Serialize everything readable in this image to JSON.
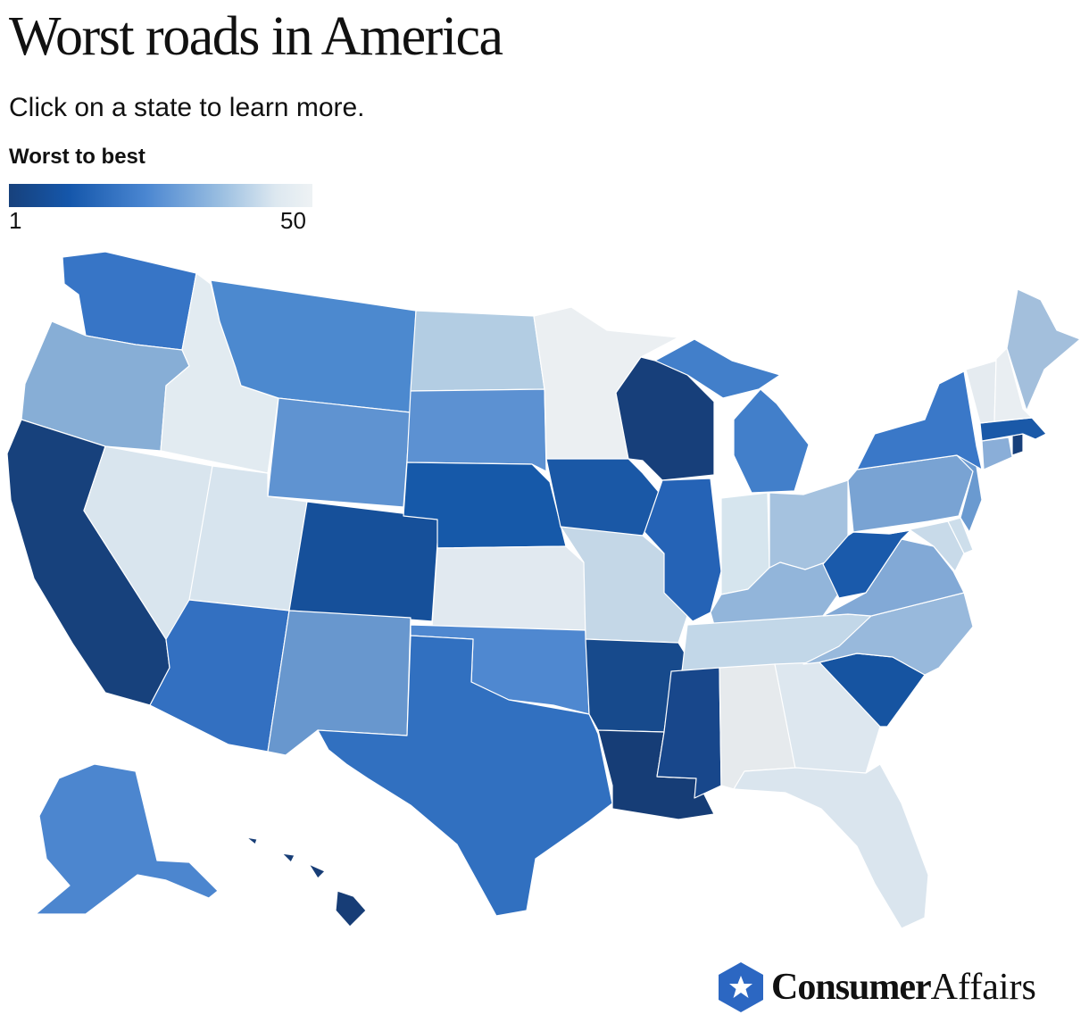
{
  "header": {
    "title": "Worst roads in America",
    "subtitle": "Click on a state to learn more."
  },
  "legend": {
    "title": "Worst to best",
    "min_label": "1",
    "max_label": "50",
    "colors": [
      "#17417c",
      "#1557ab",
      "#4a86d1",
      "#9bbfe1",
      "#dde8f0",
      "#eef2f4"
    ]
  },
  "map": {
    "metric": "rank",
    "states": [
      {
        "id": "WA",
        "name": "Washington",
        "fill": "#3775c6"
      },
      {
        "id": "OR",
        "name": "Oregon",
        "fill": "#87aed6"
      },
      {
        "id": "CA",
        "name": "California",
        "fill": "#17417c"
      },
      {
        "id": "ID",
        "name": "Idaho",
        "fill": "#e2ebf1"
      },
      {
        "id": "NV",
        "name": "Nevada",
        "fill": "#d9e5ee"
      },
      {
        "id": "MT",
        "name": "Montana",
        "fill": "#4c89cf"
      },
      {
        "id": "WY",
        "name": "Wyoming",
        "fill": "#5f93d1"
      },
      {
        "id": "UT",
        "name": "Utah",
        "fill": "#d7e4ee"
      },
      {
        "id": "CO",
        "name": "Colorado",
        "fill": "#16509a"
      },
      {
        "id": "AZ",
        "name": "Arizona",
        "fill": "#3370c1"
      },
      {
        "id": "NM",
        "name": "New Mexico",
        "fill": "#6897ce"
      },
      {
        "id": "ND",
        "name": "North Dakota",
        "fill": "#b3cde3"
      },
      {
        "id": "SD",
        "name": "South Dakota",
        "fill": "#5c91d2"
      },
      {
        "id": "NE",
        "name": "Nebraska",
        "fill": "#1659a9"
      },
      {
        "id": "KS",
        "name": "Kansas",
        "fill": "#e1e9f0"
      },
      {
        "id": "OK",
        "name": "Oklahoma",
        "fill": "#4f88d0"
      },
      {
        "id": "TX",
        "name": "Texas",
        "fill": "#3170c0"
      },
      {
        "id": "MN",
        "name": "Minnesota",
        "fill": "#ebeff2"
      },
      {
        "id": "IA",
        "name": "Iowa",
        "fill": "#1a58a6"
      },
      {
        "id": "MO",
        "name": "Missouri",
        "fill": "#c4d7e7"
      },
      {
        "id": "AR",
        "name": "Arkansas",
        "fill": "#174a8c"
      },
      {
        "id": "LA",
        "name": "Louisiana",
        "fill": "#163d76"
      },
      {
        "id": "WI",
        "name": "Wisconsin",
        "fill": "#173f7a"
      },
      {
        "id": "IL",
        "name": "Illinois",
        "fill": "#2563b6"
      },
      {
        "id": "MI",
        "name": "Michigan",
        "fill": "#427fca"
      },
      {
        "id": "IN",
        "name": "Indiana",
        "fill": "#d6e5ee"
      },
      {
        "id": "OH",
        "name": "Ohio",
        "fill": "#a5c2df"
      },
      {
        "id": "KY",
        "name": "Kentucky",
        "fill": "#92b5da"
      },
      {
        "id": "TN",
        "name": "Tennessee",
        "fill": "#c2d7e8"
      },
      {
        "id": "MS",
        "name": "Mississippi",
        "fill": "#18478b"
      },
      {
        "id": "AL",
        "name": "Alabama",
        "fill": "#e6eaed"
      },
      {
        "id": "GA",
        "name": "Georgia",
        "fill": "#dde7ef"
      },
      {
        "id": "FL",
        "name": "Florida",
        "fill": "#dae5ee"
      },
      {
        "id": "SC",
        "name": "South Carolina",
        "fill": "#1654a1"
      },
      {
        "id": "NC",
        "name": "North Carolina",
        "fill": "#98b9dc"
      },
      {
        "id": "VA",
        "name": "Virginia",
        "fill": "#82a9d6"
      },
      {
        "id": "WV",
        "name": "West Virginia",
        "fill": "#1a5aab"
      },
      {
        "id": "PA",
        "name": "Pennsylvania",
        "fill": "#79a3d3"
      },
      {
        "id": "NY",
        "name": "New York",
        "fill": "#3a78c8"
      },
      {
        "id": "MD",
        "name": "Maryland",
        "fill": "#c8dae9"
      },
      {
        "id": "DE",
        "name": "Delaware",
        "fill": "#cddeeb"
      },
      {
        "id": "NJ",
        "name": "New Jersey",
        "fill": "#6a9ad0"
      },
      {
        "id": "CT",
        "name": "Connecticut",
        "fill": "#8aaed8"
      },
      {
        "id": "RI",
        "name": "Rhode Island",
        "fill": "#173f7a"
      },
      {
        "id": "MA",
        "name": "Massachusetts",
        "fill": "#1a59a8"
      },
      {
        "id": "VT",
        "name": "Vermont",
        "fill": "#e5ebf0"
      },
      {
        "id": "NH",
        "name": "New Hampshire",
        "fill": "#e9eef2"
      },
      {
        "id": "ME",
        "name": "Maine",
        "fill": "#a3bfdc"
      },
      {
        "id": "AK",
        "name": "Alaska",
        "fill": "#4c86cf"
      },
      {
        "id": "HI",
        "name": "Hawaii",
        "fill": "#173d76"
      }
    ]
  },
  "brand": {
    "name_bold": "Consumer",
    "name_regular": "Affairs",
    "color": "#2c67c2"
  }
}
